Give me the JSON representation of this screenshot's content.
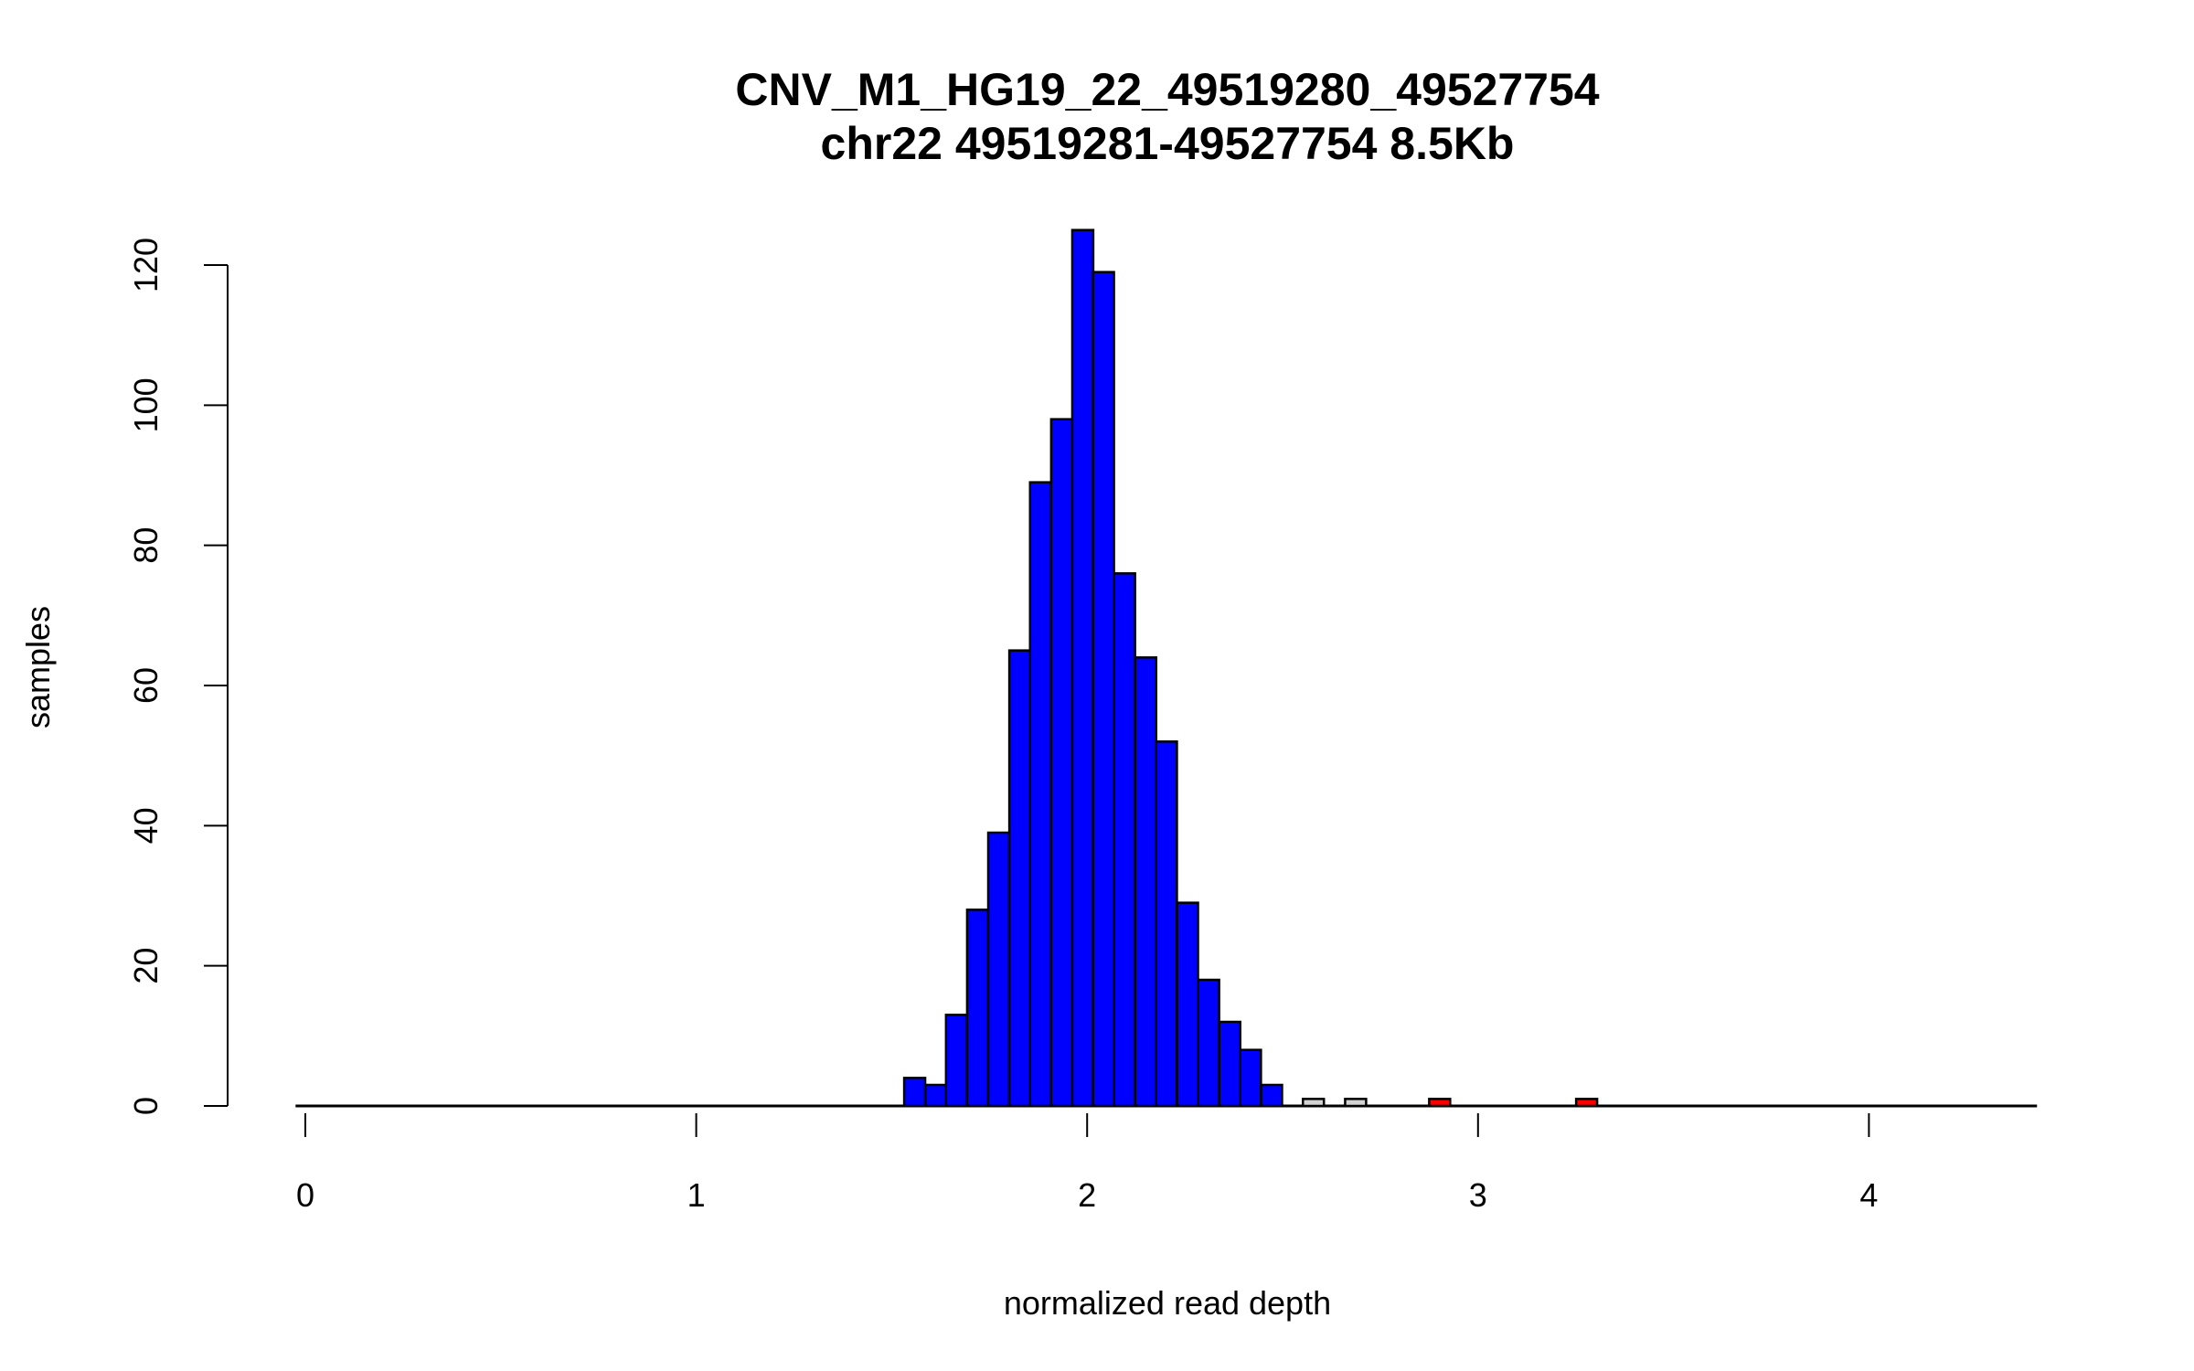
{
  "chart_data": {
    "type": "bar",
    "title": "CNV_M1_HG19_22_49519280_49527754",
    "subtitle": "chr22 49519281-49527754 8.5Kb",
    "xlabel": "normalized read depth",
    "ylabel": "samples",
    "xlim": [
      0,
      4.4
    ],
    "ylim": [
      0,
      125
    ],
    "x_ticks": [
      "0",
      "1",
      "2",
      "3",
      "4"
    ],
    "y_ticks": [
      "0",
      "20",
      "40",
      "60",
      "80",
      "100",
      "120"
    ],
    "grid": false,
    "bin_width": 0.0537,
    "bins": [
      {
        "x0": 1.532,
        "count": 4,
        "group": "normal"
      },
      {
        "x0": 1.586,
        "count": 3,
        "group": "normal"
      },
      {
        "x0": 1.639,
        "count": 13,
        "group": "normal"
      },
      {
        "x0": 1.693,
        "count": 28,
        "group": "normal"
      },
      {
        "x0": 1.747,
        "count": 39,
        "group": "normal"
      },
      {
        "x0": 1.801,
        "count": 65,
        "group": "normal"
      },
      {
        "x0": 1.854,
        "count": 89,
        "group": "normal"
      },
      {
        "x0": 1.908,
        "count": 98,
        "group": "normal"
      },
      {
        "x0": 1.962,
        "count": 125,
        "group": "normal"
      },
      {
        "x0": 2.015,
        "count": 119,
        "group": "normal"
      },
      {
        "x0": 2.069,
        "count": 76,
        "group": "normal"
      },
      {
        "x0": 2.123,
        "count": 64,
        "group": "normal"
      },
      {
        "x0": 2.176,
        "count": 52,
        "group": "normal"
      },
      {
        "x0": 2.23,
        "count": 29,
        "group": "normal"
      },
      {
        "x0": 2.284,
        "count": 18,
        "group": "normal"
      },
      {
        "x0": 2.338,
        "count": 12,
        "group": "normal"
      },
      {
        "x0": 2.391,
        "count": 8,
        "group": "normal"
      },
      {
        "x0": 2.445,
        "count": 3,
        "group": "normal"
      },
      {
        "x0": 2.552,
        "count": 1,
        "group": "ambiguous"
      },
      {
        "x0": 2.66,
        "count": 1,
        "group": "ambiguous"
      },
      {
        "x0": 2.875,
        "count": 1,
        "group": "gain"
      },
      {
        "x0": 3.251,
        "count": 1,
        "group": "gain"
      }
    ],
    "colors": {
      "normal": "#0000FF",
      "ambiguous": "#D3D3D3",
      "gain": "#FF0000",
      "border": "#000000"
    }
  }
}
